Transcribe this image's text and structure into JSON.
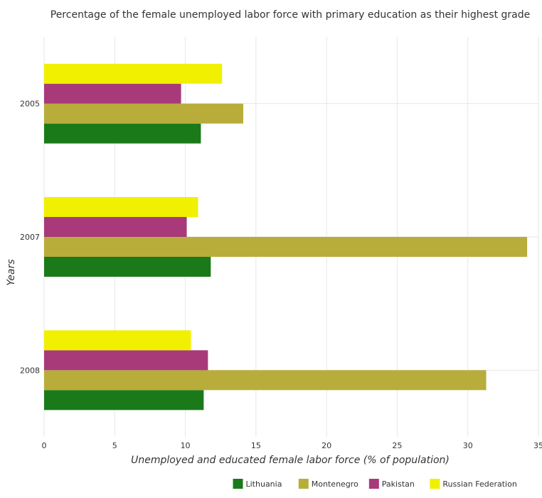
{
  "chart_data": {
    "type": "bar",
    "orientation": "horizontal",
    "title": "Percentage of the female unemployed labor force with primary education as their highest grade",
    "xlabel": "Unemployed and educated female labor force (% of population)",
    "ylabel": "Years",
    "xlim": [
      0,
      35
    ],
    "xticks": [
      0,
      5,
      10,
      15,
      20,
      25,
      30,
      35
    ],
    "categories": [
      "2005",
      "2007",
      "2008"
    ],
    "series": [
      {
        "name": "Lithuania",
        "color": "#1a7a1a",
        "values": [
          11.1,
          11.8,
          11.3
        ]
      },
      {
        "name": "Montenegro",
        "color": "#b8ad3a",
        "values": [
          14.1,
          34.2,
          31.3
        ]
      },
      {
        "name": "Pakistan",
        "color": "#a83a7a",
        "values": [
          9.7,
          10.1,
          11.6
        ]
      },
      {
        "name": "Russian Federation",
        "color": "#f0f000",
        "values": [
          12.6,
          10.9,
          10.4
        ]
      }
    ],
    "grid": true,
    "legend_position": "bottom-right"
  }
}
